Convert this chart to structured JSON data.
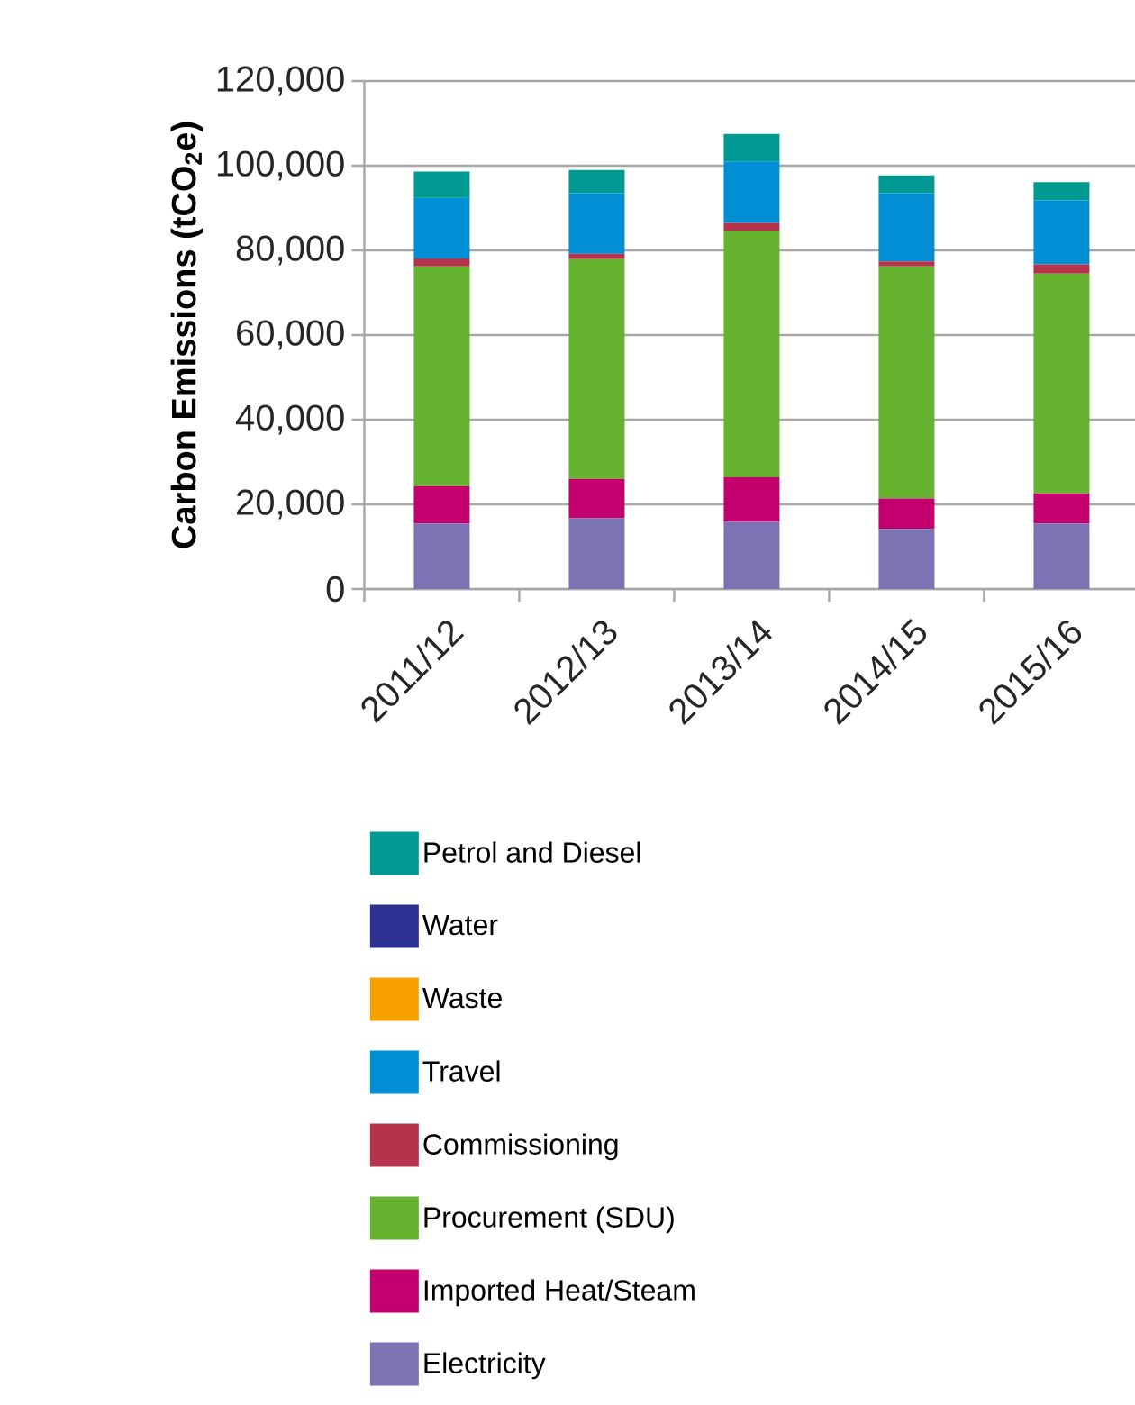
{
  "chart_data": {
    "type": "bar",
    "stacked": true,
    "ylabel": "Carbon Emissions (tCO$_{2}$e)",
    "categories": [
      "2011/12",
      "2012/13",
      "2013/14",
      "2014/15",
      "2015/16"
    ],
    "series": [
      {
        "name": "Electricity",
        "color": "#7b73b4",
        "values": [
          15500,
          16700,
          15900,
          14200,
          15500
        ]
      },
      {
        "name": "Imported Heat/Steam",
        "color": "#c4006f",
        "values": [
          8800,
          9300,
          10500,
          7200,
          7100
        ]
      },
      {
        "name": "Procurement (SDU)",
        "color": "#65b32e",
        "values": [
          51900,
          51900,
          58300,
          54800,
          51900
        ]
      },
      {
        "name": "Commissioning",
        "color": "#b5344b",
        "values": [
          1900,
          1300,
          1800,
          1200,
          2200
        ]
      },
      {
        "name": "Travel",
        "color": "#008fd5",
        "values": [
          14300,
          14300,
          14500,
          16100,
          15100
        ]
      },
      {
        "name": "Waste",
        "color": "#f7a000",
        "values": [
          0,
          0,
          0,
          0,
          0
        ]
      },
      {
        "name": "Water",
        "color": "#2e3192",
        "values": [
          0,
          0,
          0,
          0,
          0
        ]
      },
      {
        "name": "Petrol and Diesel",
        "color": "#009a93",
        "values": [
          6200,
          5500,
          6500,
          4200,
          4300
        ]
      }
    ],
    "ylim": [
      0,
      120000
    ],
    "yticks": [
      0,
      {
        "value": 20000,
        "label": "20,000"
      },
      {
        "value": 40000,
        "label": "40,000"
      },
      {
        "value": 60000,
        "label": "60,000"
      },
      {
        "value": 80000,
        "label": "80,000"
      },
      {
        "value": 100000,
        "label": "100,000"
      },
      {
        "value": 120000,
        "label": "120,000"
      }
    ],
    "grid": "y",
    "legend": "bottom"
  }
}
